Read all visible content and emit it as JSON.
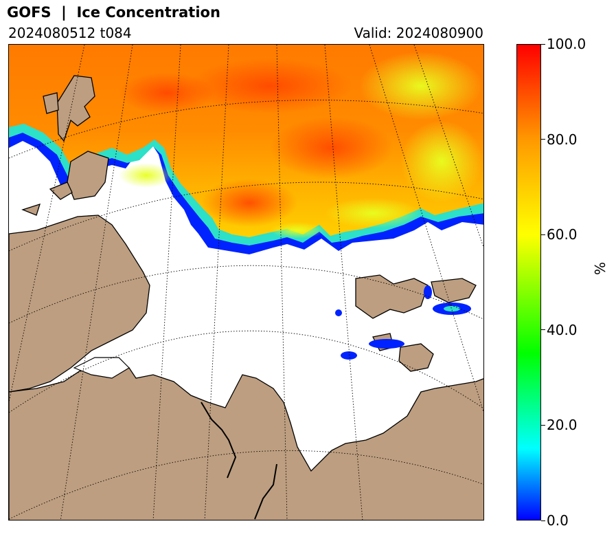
{
  "header": {
    "title": "GOFS  |  Ice Concentration",
    "run": "2024080512 t084",
    "valid": "Valid: 2024080900"
  },
  "colorbar": {
    "unit": "%",
    "ticks": [
      "100.0",
      "80.0",
      "60.0",
      "40.0",
      "20.0",
      "0.0"
    ],
    "colors": {
      "0": "#0000ff",
      "15": "#00ffff",
      "35": "#00ff00",
      "60": "#ffff00",
      "80": "#ff9900",
      "100": "#ff0000"
    }
  },
  "map": {
    "land_color": "#bd9e80",
    "ocean_color": "#ffffff",
    "coastline_color": "#000000",
    "graticule_style": "dotted"
  }
}
